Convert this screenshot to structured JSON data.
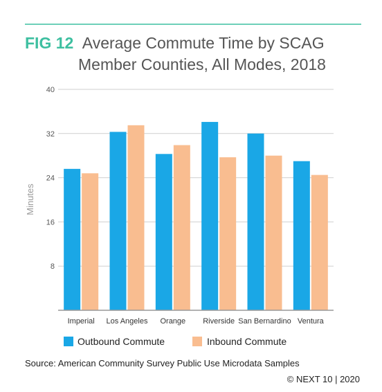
{
  "figure": {
    "label": "FIG 12",
    "title_line1": "Average Commute Time by SCAG",
    "title_line2": "Member Counties, All Modes, 2018",
    "source": "Source: American Community Survey Public Use Microdata Samples",
    "credit": "© NEXT 10 | 2020"
  },
  "colors": {
    "accent": "#3dbfa0",
    "title_text": "#555555",
    "outbound": "#1aa7e6",
    "inbound": "#f9bd90",
    "grid": "#cfcfcf",
    "axis": "#999999"
  },
  "chart_data": {
    "type": "bar",
    "categories": [
      "Imperial",
      "Los Angeles",
      "Orange",
      "Riverside",
      "San Bernardino",
      "Ventura"
    ],
    "series": [
      {
        "name": "Outbound Commute",
        "values": [
          25.6,
          32.3,
          28.3,
          34.1,
          32.0,
          27.0
        ]
      },
      {
        "name": "Inbound Commute",
        "values": [
          24.8,
          33.5,
          29.9,
          27.7,
          28.0,
          24.5
        ]
      }
    ],
    "xlabel": "",
    "ylabel": "Minutes",
    "ylim": [
      0,
      40
    ],
    "yticks": [
      8,
      16,
      24,
      32,
      40
    ],
    "grid": true,
    "legend": "bottom-left"
  }
}
